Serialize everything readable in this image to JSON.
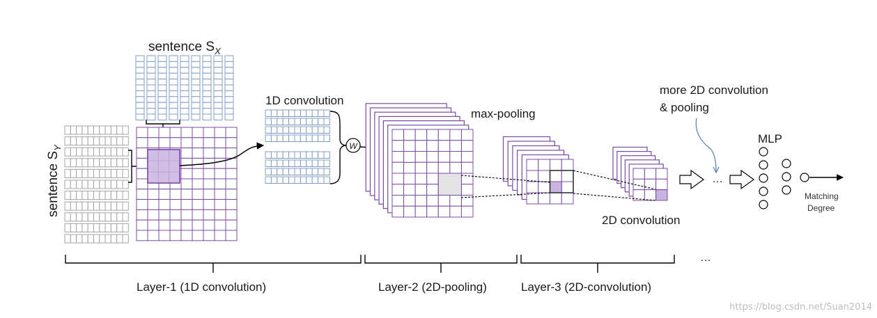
{
  "labels": {
    "sentence_x": "sentence S",
    "sentence_x_sub": "X",
    "sentence_y": "sentence S",
    "sentence_y_sub": "Y",
    "conv1d": "1D  convolution",
    "weight": "W",
    "maxpool": "max-pooling",
    "more_conv_line1": "more 2D  convolution",
    "more_conv_line2": "&  pooling",
    "conv2d": "2D  convolution",
    "mlp": "MLP",
    "ellipsis_mid": "…",
    "ellipsis_right": "…",
    "matching_line1": "Matching",
    "matching_line2": "Degree"
  },
  "layers": [
    {
      "label": "Layer-1  (1D convolution)"
    },
    {
      "label": "Layer-2   (2D-pooling)"
    },
    {
      "label": "Layer-3   (2D-convolution)"
    }
  ],
  "watermark": "https://blog.csdn.net/Suan2014",
  "colors": {
    "grid_purple": "#7b4aa8",
    "grid_blue": "#7f9cc4",
    "grid_gray": "#a3a3a3",
    "highlight": "#c9b3df",
    "highlight_light": "#e4e4e4",
    "ink": "#000000"
  }
}
